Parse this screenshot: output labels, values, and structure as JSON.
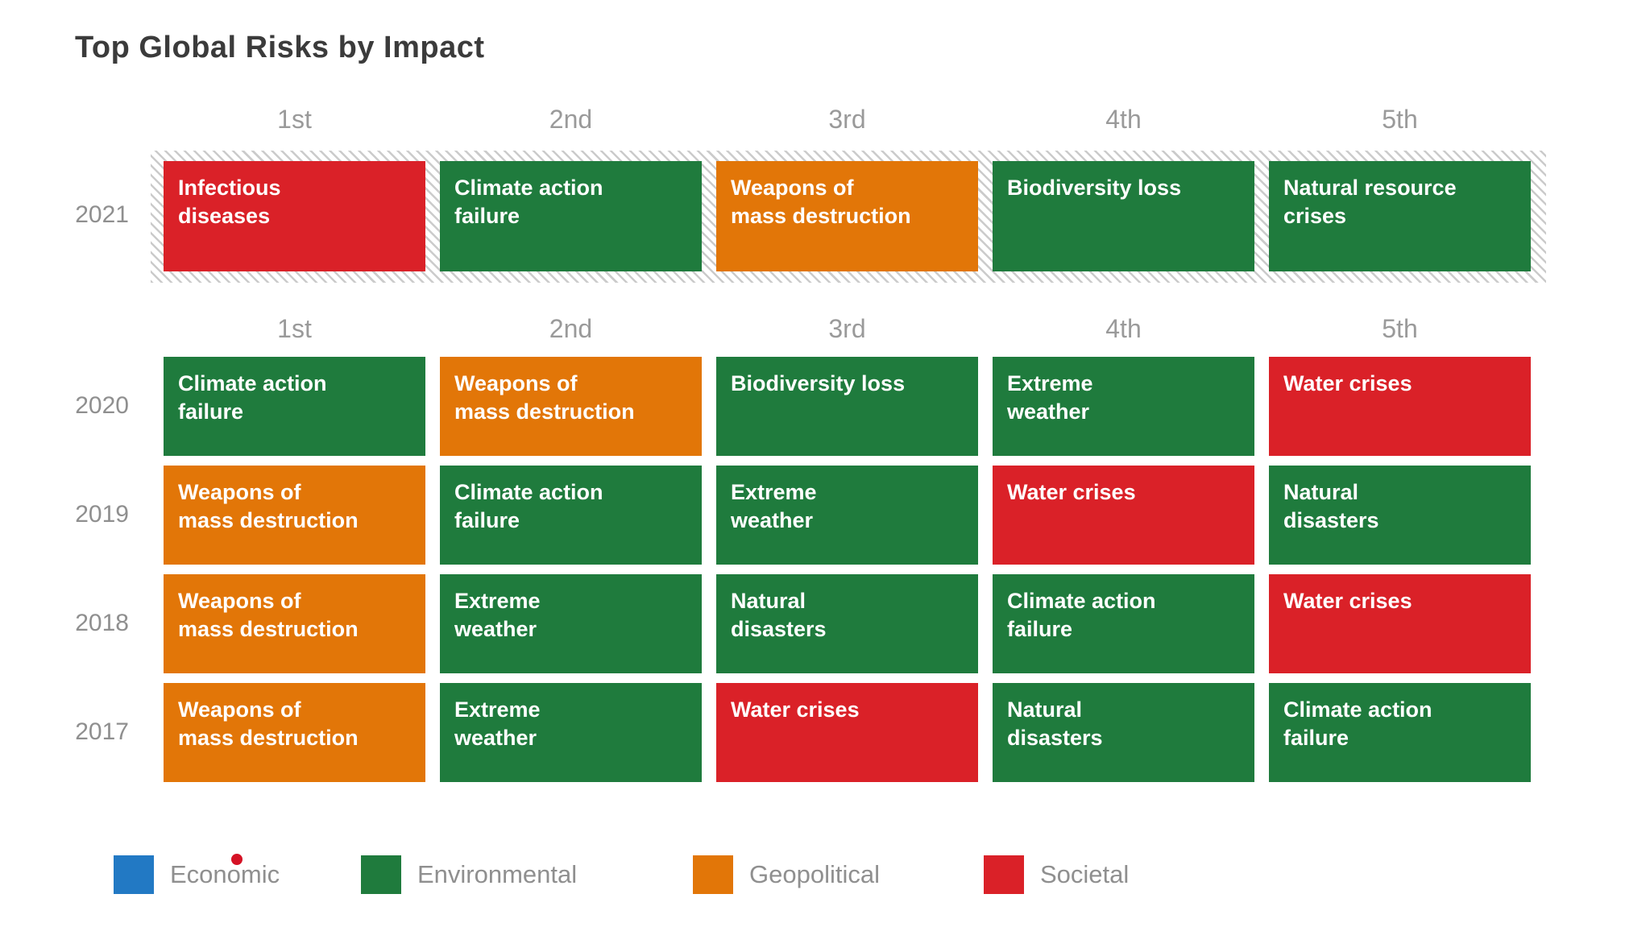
{
  "title": "Top Global Risks by Impact",
  "chart_data": {
    "type": "table",
    "title": "Top Global Risks by Impact",
    "columns": [
      "1st",
      "2nd",
      "3rd",
      "4th",
      "5th"
    ],
    "category_colors": {
      "Economic": "#2279c4",
      "Environmental": "#1f7b3d",
      "Geopolitical": "#e27608",
      "Societal": "#da2128"
    },
    "rows": [
      {
        "year": "2021",
        "highlighted": true,
        "cells": [
          {
            "rank": "1st",
            "label": "Infectious\ndiseases",
            "category": "Societal"
          },
          {
            "rank": "2nd",
            "label": "Climate action\nfailure",
            "category": "Environmental"
          },
          {
            "rank": "3rd",
            "label": "Weapons of\nmass destruction",
            "category": "Geopolitical"
          },
          {
            "rank": "4th",
            "label": "Biodiversity loss",
            "category": "Environmental"
          },
          {
            "rank": "5th",
            "label": "Natural resource\ncrises",
            "category": "Environmental"
          }
        ]
      },
      {
        "year": "2020",
        "highlighted": false,
        "cells": [
          {
            "rank": "1st",
            "label": "Climate action\nfailure",
            "category": "Environmental"
          },
          {
            "rank": "2nd",
            "label": "Weapons of\nmass destruction",
            "category": "Geopolitical"
          },
          {
            "rank": "3rd",
            "label": "Biodiversity loss",
            "category": "Environmental"
          },
          {
            "rank": "4th",
            "label": "Extreme\nweather",
            "category": "Environmental"
          },
          {
            "rank": "5th",
            "label": "Water crises",
            "category": "Societal"
          }
        ]
      },
      {
        "year": "2019",
        "highlighted": false,
        "cells": [
          {
            "rank": "1st",
            "label": "Weapons of\nmass destruction",
            "category": "Geopolitical"
          },
          {
            "rank": "2nd",
            "label": "Climate action\nfailure",
            "category": "Environmental"
          },
          {
            "rank": "3rd",
            "label": "Extreme\nweather",
            "category": "Environmental"
          },
          {
            "rank": "4th",
            "label": "Water crises",
            "category": "Societal"
          },
          {
            "rank": "5th",
            "label": "Natural\ndisasters",
            "category": "Environmental"
          }
        ]
      },
      {
        "year": "2018",
        "highlighted": false,
        "cells": [
          {
            "rank": "1st",
            "label": "Weapons of\nmass destruction",
            "category": "Geopolitical"
          },
          {
            "rank": "2nd",
            "label": "Extreme\nweather",
            "category": "Environmental"
          },
          {
            "rank": "3rd",
            "label": "Natural\ndisasters",
            "category": "Environmental"
          },
          {
            "rank": "4th",
            "label": "Climate action\nfailure",
            "category": "Environmental"
          },
          {
            "rank": "5th",
            "label": "Water crises",
            "category": "Societal"
          }
        ]
      },
      {
        "year": "2017",
        "highlighted": false,
        "cells": [
          {
            "rank": "1st",
            "label": "Weapons of\nmass destruction",
            "category": "Geopolitical"
          },
          {
            "rank": "2nd",
            "label": "Extreme\nweather",
            "category": "Environmental"
          },
          {
            "rank": "3rd",
            "label": "Water crises",
            "category": "Societal"
          },
          {
            "rank": "4th",
            "label": "Natural\ndisasters",
            "category": "Environmental"
          },
          {
            "rank": "5th",
            "label": "Climate action\nfailure",
            "category": "Environmental"
          }
        ]
      }
    ],
    "legend": [
      {
        "label": "Economic",
        "category": "Economic"
      },
      {
        "label": "Environmental",
        "category": "Environmental"
      },
      {
        "label": "Geopolitical",
        "category": "Geopolitical"
      },
      {
        "label": "Societal",
        "category": "Societal"
      }
    ],
    "layout_hints": {
      "legend_position": "bottom",
      "grid": "off",
      "highlight_style": "diagonal-hatch-frame"
    }
  }
}
